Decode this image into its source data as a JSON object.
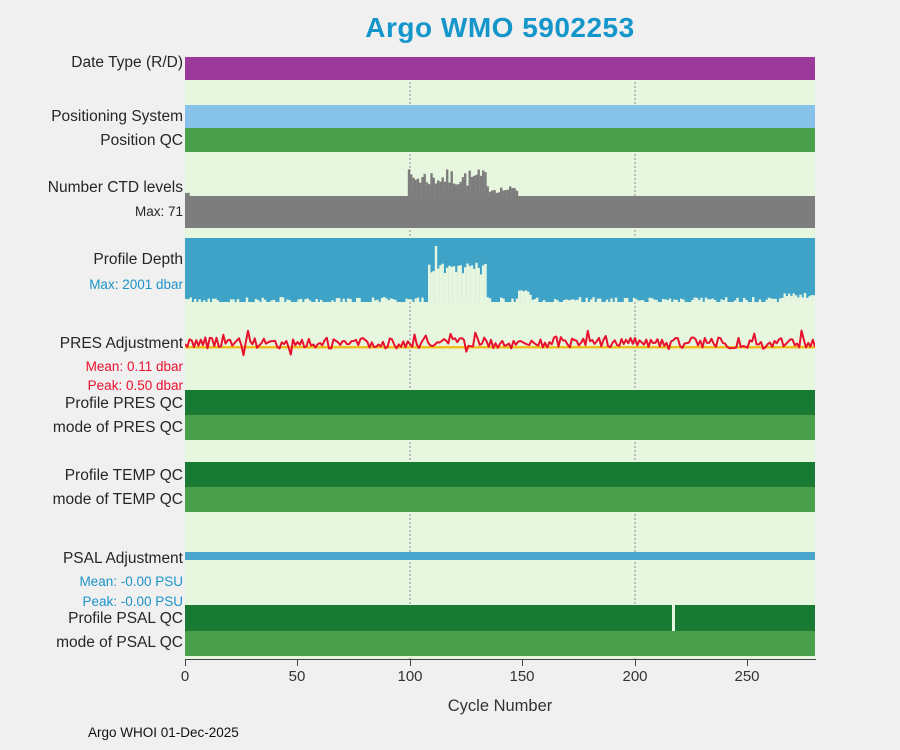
{
  "title": "Argo WMO 5902253",
  "xlabel": "Cycle Number",
  "footer": "Argo WHOI 01-Dec-2025",
  "x_tick_labels": [
    "0",
    "50",
    "100",
    "150",
    "200",
    "250"
  ],
  "left_labels": [
    {
      "text": "Date Type (R/D)"
    },
    {
      "text": "Positioning System"
    },
    {
      "text": "Position QC"
    },
    {
      "text": "Number CTD levels",
      "sub": "Max: 71"
    },
    {
      "text": "Profile Depth",
      "sub": "Max: 2001 dbar"
    },
    {
      "text": "PRES Adjustment",
      "sub1": "Mean: 0.11 dbar",
      "sub2": "Peak: 0.50 dbar"
    },
    {
      "text": "Profile PRES QC"
    },
    {
      "text": "mode of PRES QC"
    },
    {
      "text": "Profile TEMP QC"
    },
    {
      "text": "mode of TEMP QC"
    },
    {
      "text": "PSAL Adjustment",
      "sub1": "Mean: -0.00 PSU",
      "sub2": "Peak: -0.00 PSU"
    },
    {
      "text": "Profile PSAL QC"
    },
    {
      "text": "mode of PSAL QC"
    }
  ],
  "colors": {
    "title": "#1496ca",
    "plot_bg": "#e7f6df",
    "purple": "#9c3a9c",
    "light_blue": "#87c3e8",
    "green": "#4a9f4d",
    "dark_green": "#187a33",
    "gray": "#7d7d7d",
    "blue": "#3fa3c8",
    "psal_blue": "#4aa6cc",
    "red": "#e8112d",
    "yellow": "#f0c020",
    "sub_blue": "#1e93c8",
    "sub_black": "#262626"
  },
  "chart_data": {
    "type": "heatmap",
    "title": "Argo WMO 5902253",
    "xlabel": "Cycle Number",
    "x_range": [
      0,
      280
    ],
    "x_ticks": [
      0,
      50,
      100,
      150,
      200,
      250
    ],
    "gridlines_x": [
      100,
      200
    ],
    "grid": "dotted vertical gridlines at cycle 100 and 200",
    "legend_position": "none",
    "rows": [
      {
        "name": "Date Type (R/D)",
        "style": "status-band",
        "color": "#9c3a9c",
        "summary": "uniform single value for all cycles 0-280"
      },
      {
        "name": "Positioning System",
        "style": "status-band",
        "color": "#87c3e8",
        "summary": "uniform single positioning system for all cycles"
      },
      {
        "name": "Position QC",
        "style": "status-band",
        "color": "#4a9f4d",
        "summary": "uniform good position QC for all cycles"
      },
      {
        "name": "Number CTD levels",
        "style": "bars",
        "max": 71,
        "color": "#7d7d7d",
        "summary": "near-constant number of levels; elevated counts around cycles 99-147"
      },
      {
        "name": "Profile Depth",
        "style": "bars",
        "max": 2001,
        "units": "dbar",
        "color": "#3fa3c8",
        "summary": "full-depth ~2001 dbar profiles; markedly shallower profiles around cycles 108-133, minor shallow excursions near cycles 148-153 and 265-280"
      },
      {
        "name": "PRES Adjustment",
        "style": "line",
        "mean": 0.11,
        "peak": 0.5,
        "units": "dbar",
        "color": "#e8112d",
        "summary": "noisy pressure adjustment oscillating around 0.11 dbar across all cycles, peak 0.50 dbar; reference line in yellow"
      },
      {
        "name": "Profile PRES QC",
        "style": "status-band",
        "color": "#187a33",
        "summary": "uniform good QC for all cycles"
      },
      {
        "name": "mode of PRES QC",
        "style": "status-band",
        "color": "#4a9f4d",
        "summary": "uniform mode for all cycles"
      },
      {
        "name": "Profile TEMP QC",
        "style": "status-band",
        "color": "#187a33",
        "summary": "uniform good QC for all cycles"
      },
      {
        "name": "mode of TEMP QC",
        "style": "status-band",
        "color": "#4a9f4d",
        "summary": "uniform mode for all cycles"
      },
      {
        "name": "PSAL Adjustment",
        "style": "line",
        "mean": -0.0,
        "peak": -0.0,
        "units": "PSU",
        "color": "#4aa6cc",
        "summary": "flat salinity adjustment at ~0 PSU for all cycles"
      },
      {
        "name": "Profile PSAL QC",
        "style": "status-band",
        "color": "#187a33",
        "summary": "uniform good QC except a narrow gap near cycle 216"
      },
      {
        "name": "mode of PSAL QC",
        "style": "status-band",
        "color": "#4a9f4d",
        "summary": "uniform mode for all cycles"
      }
    ]
  }
}
